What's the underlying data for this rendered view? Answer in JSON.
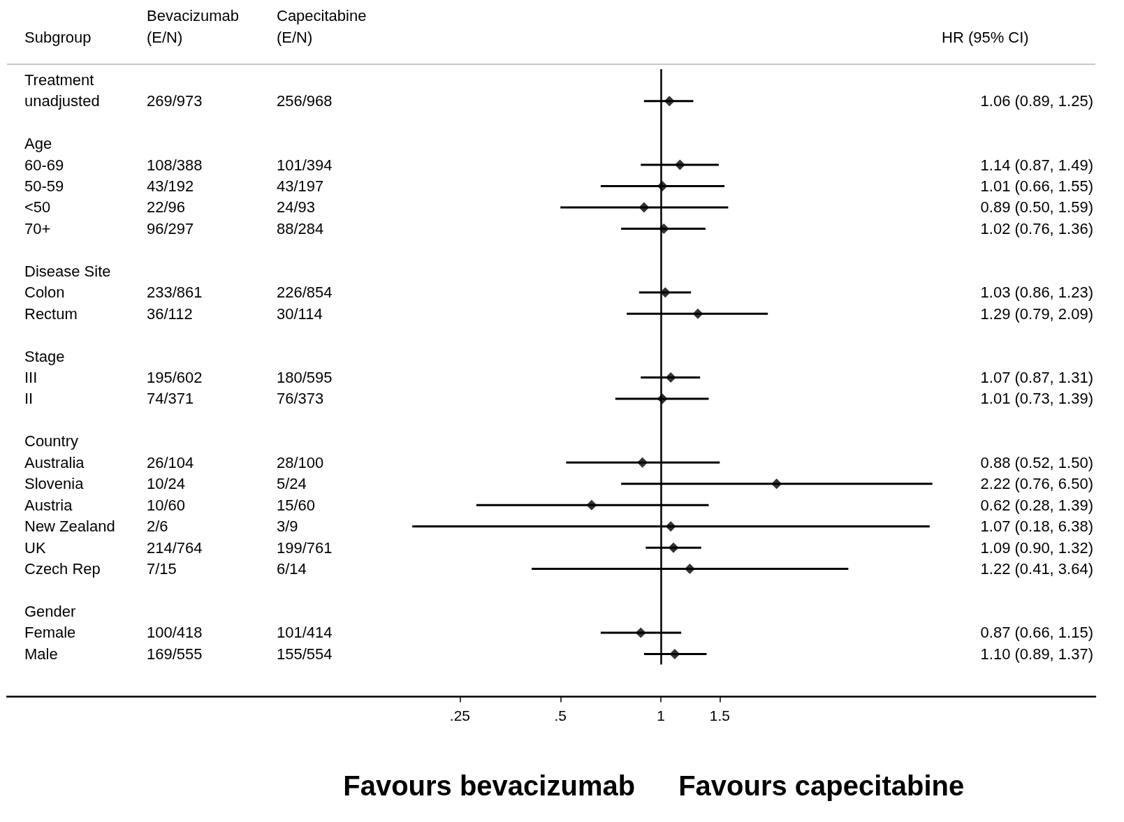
{
  "chart_data": {
    "type": "scatter",
    "orientation": "horizontal",
    "log": "x",
    "ylabel": "Subgroup",
    "y2label": "HR (95% CI)",
    "categories": [
      "Treatment",
      "unadjusted",
      null,
      "Age",
      "60-69",
      "50-59",
      "<50",
      "70+",
      null,
      "Disease Site",
      "Colon",
      "Rectum",
      null,
      "Stage",
      "III",
      "II",
      null,
      "Country",
      "Australia",
      "Slovenia",
      "Austria",
      "New Zealand",
      "UK",
      "Czech Rep",
      null,
      "Gender",
      "Female",
      "Male"
    ],
    "series": [
      {
        "color": "#000000",
        "values": [
          null,
          1.06,
          null,
          null,
          1.14,
          1.01,
          0.89,
          1.02,
          null,
          null,
          1.03,
          1.29,
          null,
          null,
          1.07,
          1.01,
          null,
          null,
          0.88,
          2.22,
          0.62,
          1.07,
          1.09,
          1.22,
          null,
          null,
          0.87,
          1.1
        ],
        "errors": [
          null,
          [
            0.89,
            1.25
          ],
          null,
          null,
          [
            0.87,
            1.49
          ],
          [
            0.66,
            1.55
          ],
          [
            0.5,
            1.59
          ],
          [
            0.76,
            1.36
          ],
          null,
          null,
          [
            0.86,
            1.23
          ],
          [
            0.79,
            2.09
          ],
          null,
          null,
          [
            0.87,
            1.31
          ],
          [
            0.73,
            1.39
          ],
          null,
          null,
          [
            0.52,
            1.5
          ],
          [
            0.76,
            6.5
          ],
          [
            0.28,
            1.39
          ],
          [
            0.18,
            6.38
          ],
          [
            0.9,
            1.32
          ],
          [
            0.41,
            3.64
          ],
          null,
          null,
          [
            0.66,
            1.15
          ],
          [
            0.89,
            1.37
          ]
        ]
      }
    ],
    "xlim": [
      0.011,
      20
    ],
    "xticks": [
      {
        "value": 0.25,
        "label": ".25"
      },
      {
        "value": 0.5,
        "label": ".5"
      },
      1,
      1.5
    ],
    "ref_lines": [
      {
        "axis": "x",
        "value": 1
      }
    ],
    "marker": "diamond",
    "grid": false,
    "annotations": [
      "Bevacizumab (E/N)",
      "Capecitabine (E/N)",
      "269/973",
      "256/968",
      "1.06 (0.89, 1.25)",
      "108/388",
      "101/394",
      "1.14 (0.87, 1.49)",
      "43/192",
      "43/197",
      "1.01 (0.66, 1.55)",
      "22/96",
      "24/93",
      "0.89 (0.50, 1.59)",
      "96/297",
      "88/284",
      "1.02 (0.76, 1.36)",
      "233/861",
      "226/854",
      "1.03 (0.86, 1.23)",
      "36/112",
      "30/114",
      "1.29 (0.79, 2.09)",
      "195/602",
      "180/595",
      "1.07 (0.87, 1.31)",
      "74/371",
      "76/373",
      "1.01 (0.73, 1.39)",
      "26/104",
      "28/100",
      "0.88 (0.52, 1.50)",
      "10/24",
      "5/24",
      "2.22 (0.76, 6.50)",
      "10/60",
      "15/60",
      "0.62 (0.28, 1.39)",
      "2/6",
      "3/9",
      "1.07 (0.18, 6.38)",
      "214/764",
      "199/761",
      "1.09 (0.90, 1.32)",
      "7/15",
      "6/14",
      "1.22 (0.41, 3.64)",
      "100/418",
      "101/414",
      "0.87 (0.66, 1.15)",
      "169/555",
      "155/554",
      "1.10 (0.89, 1.37)",
      "Favours bevacizumab",
      "Favours capecitabine"
    ]
  }
}
